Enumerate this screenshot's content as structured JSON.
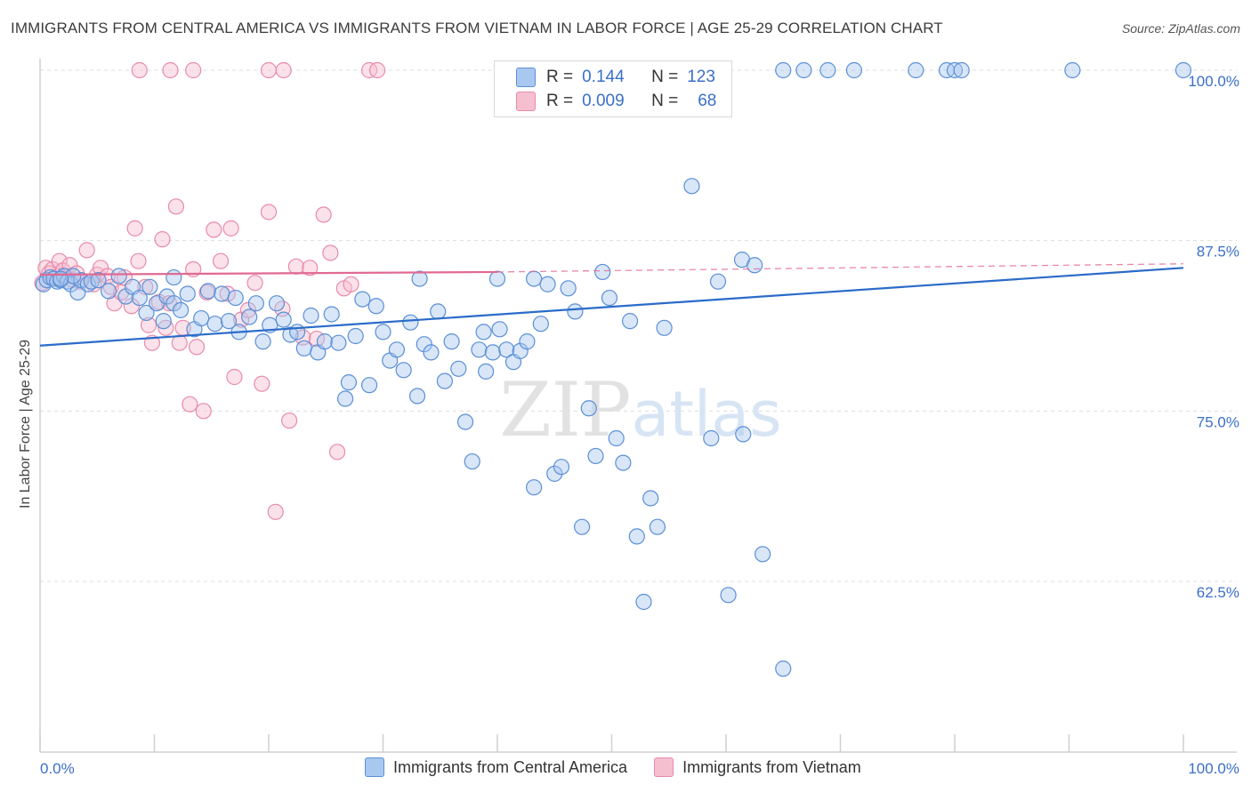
{
  "title": "IMMIGRANTS FROM CENTRAL AMERICA VS IMMIGRANTS FROM VIETNAM IN LABOR FORCE | AGE 25-29 CORRELATION CHART",
  "source": "Source: ZipAtlas.com",
  "stats_box": {
    "rows": [
      {
        "r_label": "R =",
        "r_value": "0.144",
        "n_label": "N =",
        "n_value": "123"
      },
      {
        "r_label": "R =",
        "r_value": "0.009",
        "n_label": "N =",
        "n_value": "68"
      }
    ]
  },
  "colors": {
    "blue_fill": "#a9c8f0",
    "blue_stroke": "#5b8fd6",
    "blue_line": "#2b6bc9",
    "pink_fill": "#f6bfd0",
    "pink_stroke": "#e88aa9",
    "pink_line": "#e06a92",
    "tick_label": "#3b6fc8"
  },
  "chart_data": {
    "type": "scatter",
    "title": "IMMIGRANTS FROM CENTRAL AMERICA VS IMMIGRANTS FROM VIETNAM IN LABOR FORCE | AGE 25-29 CORRELATION CHART",
    "xlabel": "",
    "ylabel": "In Labor Force | Age 25-29",
    "xlim": [
      0,
      100
    ],
    "ylim": [
      50,
      102
    ],
    "x_tick_labels": [
      "0.0%",
      "100.0%"
    ],
    "y_ticks": [
      62.5,
      75.0,
      87.5,
      100.0
    ],
    "y_tick_labels": [
      "62.5%",
      "75.0%",
      "87.5%",
      "100.0%"
    ],
    "grid": true,
    "legend_position": "bottom",
    "watermark": "ZIPatlas",
    "series": [
      {
        "name": "Immigrants from Central America",
        "trend": [
          [
            0,
            79.8
          ],
          [
            100,
            85.5
          ]
        ],
        "points": [
          [
            0.3,
            84.3
          ],
          [
            0.6,
            84.6
          ],
          [
            0.9,
            84.8
          ],
          [
            1.2,
            84.7
          ],
          [
            1.5,
            84.5
          ],
          [
            1.8,
            84.6
          ],
          [
            2.1,
            84.9
          ],
          [
            2.4,
            84.5
          ],
          [
            2.7,
            84.3
          ],
          [
            3.3,
            83.7
          ],
          [
            3.6,
            84.6
          ],
          [
            4.2,
            84.3
          ],
          [
            4.5,
            84.5
          ],
          [
            5.1,
            84.6
          ],
          [
            6.0,
            83.8
          ],
          [
            6.9,
            84.9
          ],
          [
            7.5,
            83.4
          ],
          [
            8.1,
            84.1
          ],
          [
            8.7,
            83.3
          ],
          [
            9.3,
            82.2
          ],
          [
            9.6,
            84.1
          ],
          [
            10.2,
            82.9
          ],
          [
            10.8,
            81.6
          ],
          [
            11.1,
            83.4
          ],
          [
            11.7,
            82.9
          ],
          [
            12.3,
            82.4
          ],
          [
            12.9,
            83.6
          ],
          [
            13.5,
            81.0
          ],
          [
            14.1,
            81.8
          ],
          [
            14.7,
            83.8
          ],
          [
            15.3,
            81.4
          ],
          [
            15.9,
            83.6
          ],
          [
            16.5,
            81.6
          ],
          [
            17.1,
            83.3
          ],
          [
            17.4,
            80.8
          ],
          [
            18.3,
            81.9
          ],
          [
            18.9,
            82.9
          ],
          [
            19.5,
            80.1
          ],
          [
            20.1,
            81.3
          ],
          [
            20.7,
            82.9
          ],
          [
            21.3,
            81.7
          ],
          [
            21.9,
            80.6
          ],
          [
            22.5,
            80.8
          ],
          [
            23.1,
            79.6
          ],
          [
            23.7,
            82.0
          ],
          [
            24.3,
            79.3
          ],
          [
            24.9,
            80.1
          ],
          [
            25.5,
            82.1
          ],
          [
            26.1,
            80.0
          ],
          [
            26.7,
            75.9
          ],
          [
            27.0,
            77.1
          ],
          [
            27.6,
            80.5
          ],
          [
            28.2,
            83.2
          ],
          [
            28.8,
            76.9
          ],
          [
            29.4,
            82.7
          ],
          [
            30.0,
            80.8
          ],
          [
            30.6,
            78.7
          ],
          [
            31.2,
            79.5
          ],
          [
            31.8,
            78.0
          ],
          [
            32.4,
            81.5
          ],
          [
            33.0,
            76.1
          ],
          [
            33.6,
            79.9
          ],
          [
            34.2,
            79.3
          ],
          [
            34.8,
            82.3
          ],
          [
            35.4,
            77.2
          ],
          [
            36.0,
            80.1
          ],
          [
            36.6,
            78.1
          ],
          [
            37.2,
            74.2
          ],
          [
            37.8,
            71.3
          ],
          [
            38.4,
            79.5
          ],
          [
            39.0,
            77.9
          ],
          [
            39.6,
            79.3
          ],
          [
            40.2,
            81.0
          ],
          [
            40.8,
            79.5
          ],
          [
            38.8,
            80.8
          ],
          [
            41.4,
            78.6
          ],
          [
            42.0,
            79.4
          ],
          [
            42.6,
            80.1
          ],
          [
            43.2,
            69.4
          ],
          [
            43.8,
            81.4
          ],
          [
            44.4,
            84.3
          ],
          [
            45.0,
            70.4
          ],
          [
            45.6,
            70.9
          ],
          [
            46.2,
            84.0
          ],
          [
            46.8,
            82.3
          ],
          [
            47.4,
            66.5
          ],
          [
            48.0,
            75.2
          ],
          [
            48.6,
            71.7
          ],
          [
            49.2,
            85.2
          ],
          [
            49.8,
            83.3
          ],
          [
            50.4,
            73.0
          ],
          [
            51.0,
            71.2
          ],
          [
            51.6,
            81.6
          ],
          [
            52.2,
            65.8
          ],
          [
            52.8,
            61.0
          ],
          [
            53.4,
            68.6
          ],
          [
            54.0,
            66.5
          ],
          [
            54.6,
            81.1
          ],
          [
            61.4,
            86.1
          ],
          [
            62.5,
            85.7
          ],
          [
            57.0,
            91.5
          ],
          [
            58.7,
            73.0
          ],
          [
            59.3,
            84.5
          ],
          [
            60.2,
            61.5
          ],
          [
            61.5,
            73.3
          ],
          [
            63.2,
            64.5
          ],
          [
            65.0,
            56.1
          ],
          [
            65.0,
            100
          ],
          [
            66.8,
            100
          ],
          [
            68.9,
            100
          ],
          [
            71.2,
            100
          ],
          [
            76.6,
            100
          ],
          [
            79.3,
            100
          ],
          [
            80.0,
            100
          ],
          [
            80.6,
            100
          ],
          [
            90.3,
            100
          ],
          [
            100.0,
            100
          ],
          [
            43.2,
            84.7
          ],
          [
            40.0,
            84.7
          ],
          [
            33.2,
            84.7
          ],
          [
            11.7,
            84.8
          ],
          [
            2.9,
            84.9
          ],
          [
            1.8,
            84.7
          ]
        ]
      },
      {
        "name": "Immigrants from Vietnam",
        "trend": [
          [
            0,
            85.0
          ],
          [
            40,
            85.2
          ]
        ],
        "trend_dashed": [
          [
            40,
            85.2
          ],
          [
            100,
            85.8
          ]
        ],
        "points": [
          [
            0.2,
            84.4
          ],
          [
            0.5,
            85.5
          ],
          [
            0.8,
            85.1
          ],
          [
            1.1,
            85.4
          ],
          [
            1.4,
            84.8
          ],
          [
            1.7,
            86.0
          ],
          [
            2.0,
            85.3
          ],
          [
            2.3,
            84.9
          ],
          [
            2.6,
            85.7
          ],
          [
            2.9,
            84.6
          ],
          [
            3.2,
            85.1
          ],
          [
            3.5,
            84.5
          ],
          [
            4.1,
            86.8
          ],
          [
            4.7,
            84.3
          ],
          [
            5.0,
            85.0
          ],
          [
            5.3,
            85.5
          ],
          [
            5.9,
            84.9
          ],
          [
            6.2,
            84.1
          ],
          [
            6.5,
            82.9
          ],
          [
            7.1,
            83.7
          ],
          [
            7.4,
            84.8
          ],
          [
            8.0,
            82.7
          ],
          [
            8.3,
            88.4
          ],
          [
            8.6,
            86.0
          ],
          [
            9.2,
            84.1
          ],
          [
            9.5,
            81.3
          ],
          [
            9.8,
            80.0
          ],
          [
            10.4,
            83.0
          ],
          [
            10.7,
            87.6
          ],
          [
            11.0,
            81.1
          ],
          [
            11.3,
            82.9
          ],
          [
            11.9,
            90.0
          ],
          [
            12.2,
            80.0
          ],
          [
            12.5,
            81.1
          ],
          [
            13.1,
            75.5
          ],
          [
            13.4,
            85.4
          ],
          [
            13.7,
            79.7
          ],
          [
            14.3,
            75.0
          ],
          [
            14.6,
            83.7
          ],
          [
            15.2,
            88.3
          ],
          [
            15.8,
            86.0
          ],
          [
            16.4,
            83.6
          ],
          [
            16.7,
            88.4
          ],
          [
            17.0,
            77.5
          ],
          [
            17.6,
            81.7
          ],
          [
            18.2,
            82.4
          ],
          [
            18.8,
            84.4
          ],
          [
            19.4,
            77.0
          ],
          [
            20.0,
            89.6
          ],
          [
            20.6,
            67.6
          ],
          [
            21.2,
            82.5
          ],
          [
            21.8,
            74.3
          ],
          [
            22.4,
            85.6
          ],
          [
            23.0,
            80.4
          ],
          [
            23.6,
            85.5
          ],
          [
            24.2,
            80.3
          ],
          [
            24.8,
            89.4
          ],
          [
            25.4,
            86.6
          ],
          [
            26.0,
            72.0
          ],
          [
            26.6,
            84.0
          ],
          [
            27.2,
            84.3
          ],
          [
            8.7,
            100
          ],
          [
            11.4,
            100
          ],
          [
            13.4,
            100
          ],
          [
            20.0,
            100
          ],
          [
            21.3,
            100
          ],
          [
            28.8,
            100
          ],
          [
            29.5,
            100
          ]
        ]
      }
    ]
  },
  "legend_bottom": [
    {
      "label": "Immigrants from Central America"
    },
    {
      "label": "Immigrants from Vietnam"
    }
  ]
}
